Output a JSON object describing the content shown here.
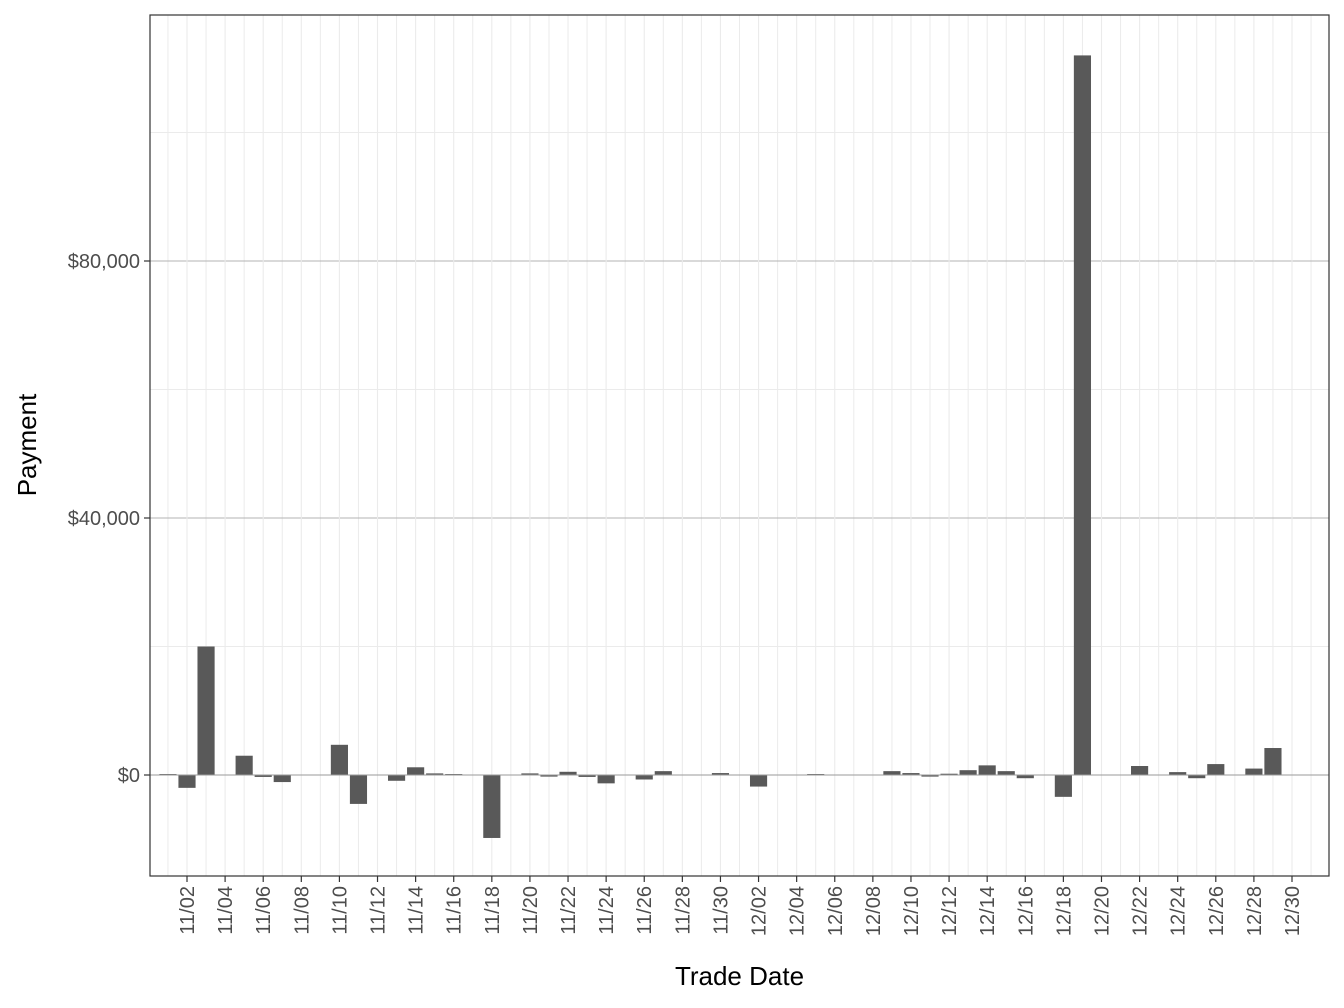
{
  "chart_data": {
    "type": "bar",
    "xlabel": "Trade Date",
    "ylabel": "Payment",
    "y_ticks": [
      0,
      40000,
      80000
    ],
    "y_tick_labels": [
      "$0",
      "$40,000",
      "$80,000"
    ],
    "ylim": [
      -15500,
      118000
    ],
    "x_tick_labels": [
      "11/02",
      "11/04",
      "11/06",
      "11/08",
      "11/10",
      "11/12",
      "11/14",
      "11/16",
      "11/18",
      "11/20",
      "11/22",
      "11/24",
      "11/26",
      "11/28",
      "11/30",
      "12/02",
      "12/04",
      "12/06",
      "12/08",
      "12/10",
      "12/12",
      "12/14",
      "12/16",
      "12/18",
      "12/20",
      "12/22",
      "12/24",
      "12/26",
      "12/28",
      "12/30"
    ],
    "grid": true,
    "bars": [
      {
        "date": "11/01",
        "value": 150
      },
      {
        "date": "11/02",
        "value": -2000
      },
      {
        "date": "11/03",
        "value": 20000
      },
      {
        "date": "11/05",
        "value": 3000
      },
      {
        "date": "11/06",
        "value": -300
      },
      {
        "date": "11/07",
        "value": -1100
      },
      {
        "date": "11/10",
        "value": 4700
      },
      {
        "date": "11/11",
        "value": -4500
      },
      {
        "date": "11/13",
        "value": -900
      },
      {
        "date": "11/14",
        "value": 1200
      },
      {
        "date": "11/15",
        "value": 250
      },
      {
        "date": "11/16",
        "value": 150
      },
      {
        "date": "11/18",
        "value": -9800
      },
      {
        "date": "11/20",
        "value": 250
      },
      {
        "date": "11/21",
        "value": -250
      },
      {
        "date": "11/22",
        "value": 500
      },
      {
        "date": "11/23",
        "value": -300
      },
      {
        "date": "11/24",
        "value": -1300
      },
      {
        "date": "11/26",
        "value": -700
      },
      {
        "date": "11/27",
        "value": 600
      },
      {
        "date": "11/30",
        "value": 300
      },
      {
        "date": "12/02",
        "value": -1800
      },
      {
        "date": "12/05",
        "value": 150
      },
      {
        "date": "12/09",
        "value": 600
      },
      {
        "date": "12/10",
        "value": 300
      },
      {
        "date": "12/11",
        "value": -250
      },
      {
        "date": "12/12",
        "value": 200
      },
      {
        "date": "12/13",
        "value": 750
      },
      {
        "date": "12/14",
        "value": 1500
      },
      {
        "date": "12/15",
        "value": 600
      },
      {
        "date": "12/16",
        "value": -500
      },
      {
        "date": "12/18",
        "value": -3400
      },
      {
        "date": "12/19",
        "value": 112000
      },
      {
        "date": "12/22",
        "value": 1400
      },
      {
        "date": "12/24",
        "value": 450
      },
      {
        "date": "12/25",
        "value": -500
      },
      {
        "date": "12/26",
        "value": 1700
      },
      {
        "date": "12/28",
        "value": 1000
      },
      {
        "date": "12/29",
        "value": 4200
      }
    ]
  }
}
